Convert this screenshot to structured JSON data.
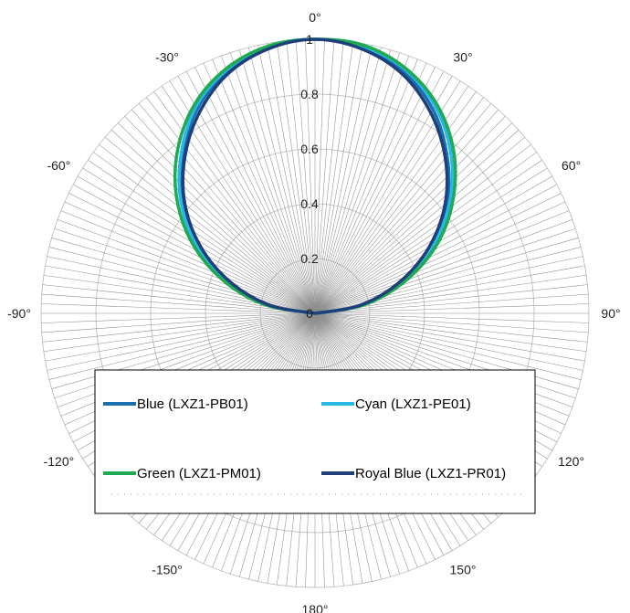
{
  "chart_data": {
    "type": "polar-line",
    "title": "",
    "angle_unit": "degrees",
    "radial_range": [
      0,
      1
    ],
    "radial_ticks": [
      "0",
      "0.2",
      "0.4",
      "0.6",
      "0.8",
      "1"
    ],
    "angle_ticks": [
      "0°",
      "30°",
      "60°",
      "90°",
      "120°",
      "150°",
      "180°",
      "-150°",
      "-120°",
      "-90°",
      "-60°",
      "-30°"
    ],
    "angle_tick_values": [
      0,
      30,
      60,
      90,
      120,
      150,
      180,
      -150,
      -120,
      -90,
      -60,
      -30
    ],
    "grid": true,
    "legend_position": "bottom-center",
    "series": [
      {
        "name": "Blue (LXZ1-PB01)",
        "color": "#1a6fb0",
        "angles": [
          -90,
          -80,
          -70,
          -60,
          -50,
          -40,
          -30,
          -20,
          -10,
          0,
          10,
          20,
          30,
          40,
          50,
          60,
          70,
          80,
          90
        ],
        "values": [
          0.0,
          0.17,
          0.33,
          0.49,
          0.63,
          0.75,
          0.86,
          0.94,
          0.985,
          1.0,
          0.985,
          0.94,
          0.86,
          0.75,
          0.63,
          0.49,
          0.33,
          0.17,
          0.0
        ]
      },
      {
        "name": "Cyan (LXZ1-PE01)",
        "color": "#29b6e8",
        "angles": [
          -90,
          -80,
          -70,
          -60,
          -50,
          -40,
          -30,
          -20,
          -10,
          0,
          10,
          20,
          30,
          40,
          50,
          60,
          70,
          80,
          90
        ],
        "values": [
          0.0,
          0.18,
          0.34,
          0.5,
          0.64,
          0.76,
          0.87,
          0.945,
          0.99,
          1.0,
          0.99,
          0.95,
          0.875,
          0.77,
          0.645,
          0.5,
          0.34,
          0.18,
          0.0
        ]
      },
      {
        "name": "Green (LXZ1-PM01)",
        "color": "#1eaa50",
        "angles": [
          -90,
          -80,
          -70,
          -60,
          -50,
          -40,
          -30,
          -20,
          -10,
          0,
          10,
          20,
          30,
          40,
          50,
          60,
          70,
          80,
          90
        ],
        "values": [
          0.0,
          0.19,
          0.36,
          0.52,
          0.66,
          0.78,
          0.88,
          0.95,
          0.99,
          1.0,
          0.995,
          0.955,
          0.885,
          0.785,
          0.66,
          0.52,
          0.355,
          0.185,
          0.0
        ]
      },
      {
        "name": "Royal Blue (LXZ1-PR01)",
        "color": "#1f3f7a",
        "angles": [
          -90,
          -80,
          -70,
          -60,
          -50,
          -40,
          -30,
          -20,
          -10,
          0,
          10,
          20,
          30,
          40,
          50,
          60,
          70,
          80,
          90
        ],
        "values": [
          0.0,
          0.165,
          0.325,
          0.48,
          0.62,
          0.74,
          0.845,
          0.93,
          0.98,
          1.0,
          0.98,
          0.93,
          0.845,
          0.74,
          0.62,
          0.48,
          0.325,
          0.165,
          0.0
        ]
      }
    ]
  }
}
